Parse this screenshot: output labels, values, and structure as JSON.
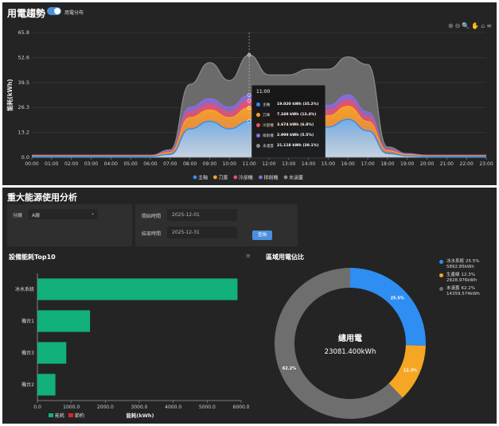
{
  "trend": {
    "title": "用電趨勢",
    "toggle_label": "用電分布",
    "tools": "⊕⊖🔍✋⌂≡",
    "y_label": "能耗(kWh)",
    "y_ticks": [
      "0.0",
      "13.2",
      "26.3",
      "39.5",
      "52.6",
      "65.8"
    ],
    "x_ticks": [
      "00:00",
      "01:00",
      "02:00",
      "03:00",
      "04:00",
      "05:00",
      "06:00",
      "07:00",
      "08:00",
      "09:00",
      "10:00",
      "11:00",
      "12:00",
      "13:00",
      "14:00",
      "15:00",
      "16:00",
      "17:00",
      "18:00",
      "19:00",
      "20:00",
      "21:00",
      "22:00",
      "23:00"
    ],
    "legend": [
      {
        "name": "主軸",
        "color": "#2e8ef2"
      },
      {
        "name": "刀庫",
        "color": "#f5a623"
      },
      {
        "name": "冷卻機",
        "color": "#e8506a"
      },
      {
        "name": "排削機",
        "color": "#8b6bd9"
      },
      {
        "name": "未涵蓋",
        "color": "#8c8c8c"
      }
    ],
    "tooltip": {
      "title": "11:00",
      "rows": [
        {
          "name": "主軸",
          "value": "19.020 kWh (35.2%)",
          "color": "#2e8ef2"
        },
        {
          "name": "刀庫",
          "value": "7.249 kWh (13.4%)",
          "color": "#f5a623"
        },
        {
          "name": "冷卻機",
          "value": "3.674 kWh (6.8%)",
          "color": "#e8506a"
        },
        {
          "name": "排削機",
          "value": "2.999 kWh (5.5%)",
          "color": "#8b6bd9"
        },
        {
          "name": "未涵蓋",
          "value": "21.118 kWh (39.1%)",
          "color": "#8c8c8c"
        }
      ]
    }
  },
  "chart_data": [
    {
      "type": "area",
      "stacked": true,
      "x": [
        "00:00",
        "01:00",
        "02:00",
        "03:00",
        "04:00",
        "05:00",
        "06:00",
        "07:00",
        "08:00",
        "09:00",
        "10:00",
        "11:00",
        "12:00",
        "13:00",
        "14:00",
        "15:00",
        "16:00",
        "17:00",
        "18:00",
        "19:00",
        "20:00",
        "21:00",
        "22:00",
        "23:00"
      ],
      "ylabel": "能耗(kWh)",
      "ylim": [
        0,
        65.8
      ],
      "grid": true,
      "legend_position": "bottom",
      "series": [
        {
          "name": "主軸",
          "values": [
            0.5,
            0.5,
            0.5,
            0.5,
            0.5,
            0.5,
            0.5,
            1.5,
            15,
            19,
            15,
            19,
            14,
            14,
            16,
            16,
            20,
            14,
            2,
            0.8,
            0.5,
            0.5,
            0.5,
            0.5
          ]
        },
        {
          "name": "刀庫",
          "values": [
            0.3,
            0.3,
            0.3,
            0.3,
            0.3,
            0.3,
            0.3,
            1,
            6,
            6,
            6,
            7.2,
            6,
            6,
            6,
            6,
            7,
            5,
            1.5,
            0.6,
            0.3,
            0.3,
            0.3,
            0.3
          ]
        },
        {
          "name": "冷卻機",
          "values": [
            0.2,
            0.2,
            0.2,
            0.2,
            0.2,
            0.2,
            0.2,
            0.5,
            3,
            3,
            3,
            3.7,
            3,
            3,
            3,
            3,
            3,
            2.5,
            0.5,
            0.3,
            0.2,
            0.2,
            0.2,
            0.2
          ]
        },
        {
          "name": "排削機",
          "values": [
            0.1,
            0.1,
            0.1,
            0.1,
            0.1,
            0.1,
            0.1,
            0.5,
            2.5,
            3,
            2.5,
            3,
            2.5,
            2.5,
            2.5,
            2.5,
            3,
            2.5,
            0.5,
            0.3,
            0.1,
            0.1,
            0.1,
            0.1
          ]
        },
        {
          "name": "未涵蓋",
          "values": [
            0,
            0,
            0,
            0,
            0,
            0,
            0,
            0.5,
            12,
            19,
            14,
            21.1,
            18,
            18,
            19,
            19,
            20,
            25,
            1,
            0,
            0,
            0,
            0,
            0
          ]
        }
      ]
    },
    {
      "type": "bar",
      "orientation": "horizontal",
      "title": "設備能耗Top10",
      "categories": [
        "冰水系統",
        "機台1",
        "機台3",
        "機台2"
      ],
      "series": [
        {
          "name": "能耗",
          "values": [
            5892.85,
            1550,
            850,
            530
          ]
        }
      ],
      "xlabel": "能耗(kWh)",
      "xlim": [
        0,
        6000
      ],
      "x_ticks": [
        "0.0",
        "1000.0",
        "2000.0",
        "3000.0",
        "4000.0",
        "5000.0",
        "6000.0"
      ],
      "legend": [
        {
          "name": "能耗",
          "color": "#12b07a"
        },
        {
          "name": "節約",
          "color": "#e02424"
        }
      ]
    },
    {
      "type": "pie",
      "title": "區域用電佔比",
      "center_title": "總用電",
      "center_value": "23081.400kWh",
      "slices": [
        {
          "name": "冰水系統",
          "percent": 25.5,
          "value": "5892.85kWh",
          "label": "25.5%",
          "pct_text": "25.5%",
          "color": "#2e8ef2"
        },
        {
          "name": "生產線",
          "percent": 12.3,
          "value": "2828.976kWh",
          "label": "12.3%",
          "pct_text": "12.3%",
          "color": "#f5a623"
        },
        {
          "name": "未涵蓋",
          "percent": 62.2,
          "value": "14359.574kWh",
          "label": "62.2%",
          "pct_text": "62.2%",
          "color": "#6e6e6e"
        }
      ]
    }
  ],
  "analysis": {
    "title": "重大能源使用分析",
    "area_label": "分廠",
    "area_value": "A廠",
    "start_label": "開始時間",
    "start_value": "2025-12-01",
    "end_label": "結束時間",
    "end_value": "2025-12-31",
    "query_label": "查詢",
    "menu_icon": "≡"
  }
}
